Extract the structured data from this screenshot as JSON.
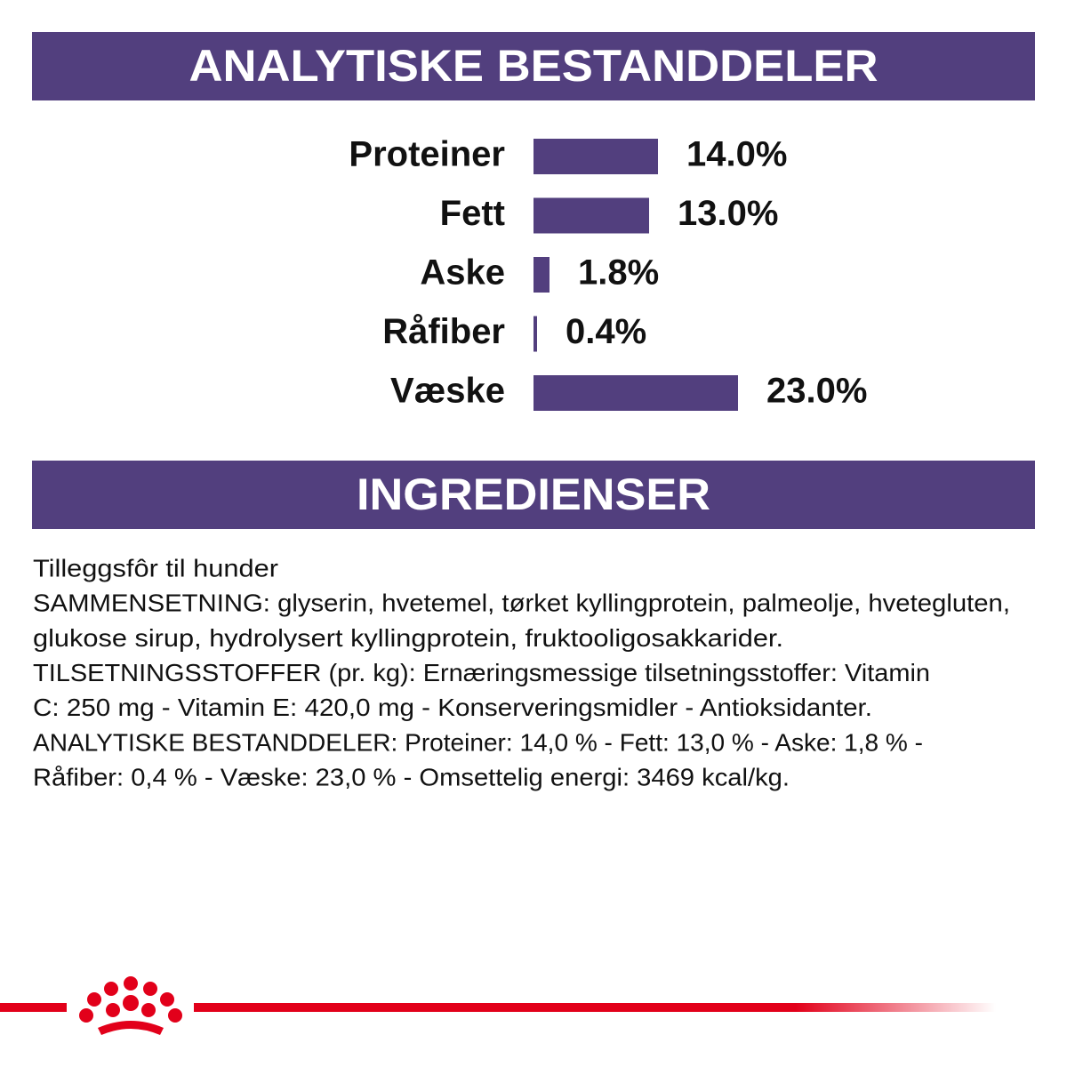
{
  "chart_data": {
    "type": "bar",
    "orientation": "horizontal",
    "title": "ANALYTISKE BESTANDDELER",
    "categories": [
      "Proteiner",
      "Fett",
      "Aske",
      "Råfiber",
      "Væske"
    ],
    "values": [
      14.0,
      13.0,
      1.8,
      0.4,
      23.0
    ],
    "value_labels": [
      "14.0%",
      "13.0%",
      "1.8%",
      "0.4%",
      "23.0%"
    ],
    "color": "#523f7e"
  },
  "ingredients": {
    "title": "INGREDIENSER",
    "lines": [
      "Tilleggsfôr til hunder",
      "SAMMENSETNING: glyserin, hvetemel, tørket kyllingprotein, palmeolje, hvetegluten,",
      "glukose sirup, hydrolysert kyllingprotein, fruktooligosakkarider.",
      "TILSETNINGSSTOFFER (pr. kg): Ernæringsmessige tilsetningsstoffer: Vitamin",
      "C: 250 mg - Vitamin E: 420,0 mg - Konserveringsmidler - Antioksidanter.",
      "ANALYTISKE BESTANDDELER: Proteiner: 14,0 % - Fett: 13,0 % - Aske: 1,8 % -",
      "Råfiber: 0,4 % - Væske: 23,0 % - Omsettelig energi: 3469 kcal/kg."
    ]
  }
}
